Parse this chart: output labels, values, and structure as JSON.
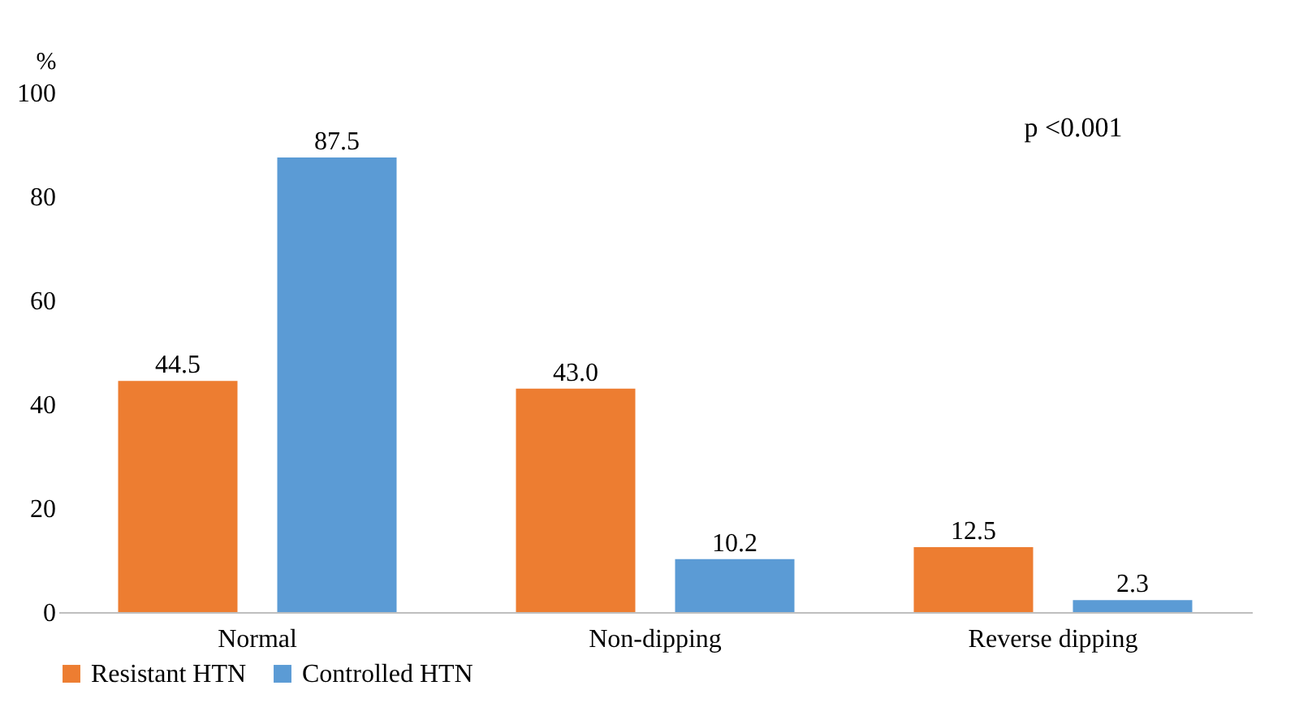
{
  "chart_data": {
    "type": "bar",
    "ylabel": "%",
    "categories": [
      "Normal",
      "Non-dipping",
      "Reverse dipping"
    ],
    "series": [
      {
        "name": "Resistant HTN",
        "color": "#ed7d31",
        "values": [
          44.5,
          43.0,
          12.5
        ],
        "value_labels": [
          "44.5",
          "43.0",
          "12.5"
        ]
      },
      {
        "name": "Controlled HTN",
        "color": "#5b9bd5",
        "values": [
          87.5,
          10.2,
          2.3
        ],
        "value_labels": [
          "87.5",
          "10.2",
          "2.3"
        ]
      }
    ],
    "ylim": [
      0,
      100
    ],
    "yticks": [
      0,
      20,
      40,
      60,
      80,
      100
    ],
    "grid": false,
    "legend": "bottom",
    "annotations": [
      "p <0.001"
    ]
  }
}
